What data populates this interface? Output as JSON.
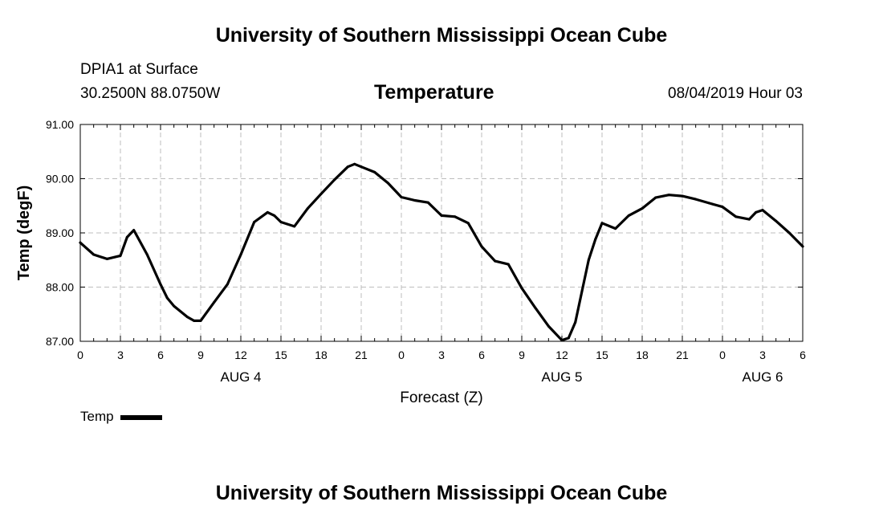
{
  "header": {
    "title": "University of Southern Mississippi Ocean Cube"
  },
  "station": {
    "name": "DPIA1 at Surface",
    "coords": "30.2500N 88.0750W"
  },
  "plot": {
    "title": "Temperature",
    "datetime": "08/04/2019 Hour 03"
  },
  "footer": {
    "title": "University of Southern Mississippi Ocean Cube"
  },
  "legend": {
    "label": "Temp",
    "color": "#000000"
  },
  "chart_data": {
    "type": "line",
    "title": "Temperature",
    "xlabel": "Forecast (Z)",
    "ylabel": "Temp (degF)",
    "ylim": [
      87.0,
      91.0
    ],
    "xlim": [
      0,
      54
    ],
    "y_ticks": [
      "87.00",
      "88.00",
      "89.00",
      "90.00",
      "91.00"
    ],
    "x_tick_labels": [
      "0",
      "3",
      "6",
      "9",
      "12",
      "15",
      "18",
      "21",
      "0",
      "3",
      "6",
      "9",
      "12",
      "15",
      "18",
      "21",
      "0",
      "3",
      "6"
    ],
    "day_labels": [
      {
        "label": "AUG 4",
        "hour": 12
      },
      {
        "label": "AUG 5",
        "hour": 36
      },
      {
        "label": "AUG 6",
        "hour": 51
      }
    ],
    "grid": true,
    "series": [
      {
        "name": "Temp",
        "x": [
          0,
          1,
          2,
          3,
          3.5,
          4,
          5,
          6,
          6.5,
          7,
          8,
          8.5,
          9,
          10,
          11,
          12,
          13,
          14,
          14.5,
          15,
          16,
          17,
          18,
          19,
          20,
          20.5,
          21,
          22,
          23,
          24,
          25,
          26,
          27,
          28,
          29,
          30,
          31,
          32,
          33,
          34,
          35,
          36,
          36.5,
          37,
          38,
          38.5,
          39,
          40,
          41,
          42,
          43,
          44,
          45,
          46,
          47,
          48,
          49,
          50,
          50.5,
          51,
          52,
          53,
          54
        ],
        "values": [
          88.82,
          88.6,
          88.52,
          88.58,
          88.92,
          89.05,
          88.6,
          88.05,
          87.8,
          87.65,
          87.45,
          87.38,
          87.38,
          87.72,
          88.05,
          88.6,
          89.2,
          89.38,
          89.32,
          89.2,
          89.12,
          89.45,
          89.72,
          89.98,
          90.22,
          90.27,
          90.22,
          90.12,
          89.92,
          89.66,
          89.6,
          89.56,
          89.32,
          89.3,
          89.18,
          88.75,
          88.48,
          88.42,
          87.98,
          87.62,
          87.28,
          87.02,
          87.06,
          87.35,
          88.5,
          88.88,
          89.18,
          89.08,
          89.32,
          89.45,
          89.65,
          89.7,
          89.68,
          89.62,
          89.55,
          89.48,
          89.3,
          89.25,
          89.38,
          89.42,
          89.22,
          89.0,
          88.75
        ]
      }
    ]
  }
}
